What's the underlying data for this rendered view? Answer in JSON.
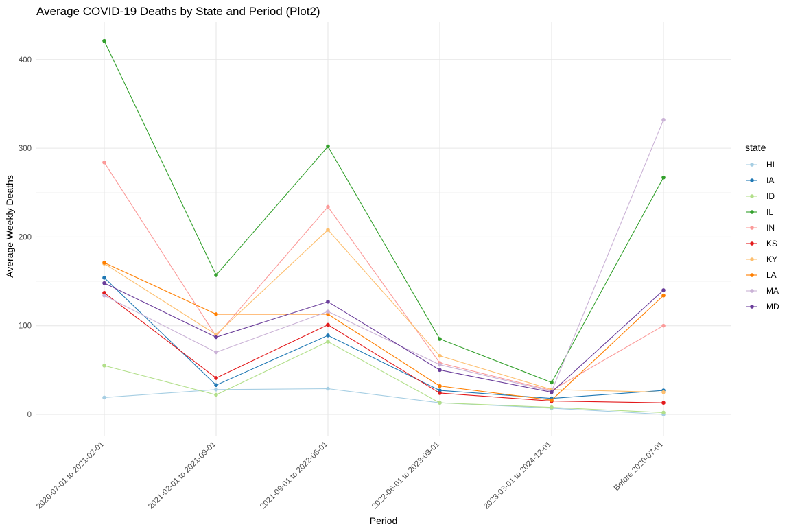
{
  "chart_data": {
    "type": "line",
    "title": "Average COVID-19 Deaths by State and Period (Plot2)",
    "xlabel": "Period",
    "ylabel": "Average Weekly Deaths",
    "categories": [
      "2020-07-01 to 2021-02-01",
      "2021-02-01 to 2021-09-01",
      "2021-09-01 to 2022-06-01",
      "2022-06-01 to 2023-03-01",
      "2023-03-01 to 2024-12-01",
      "Before 2020-07-01"
    ],
    "ylim": [
      -30,
      445
    ],
    "yticks": [
      0,
      100,
      200,
      300,
      400
    ],
    "grid": true,
    "legend_title": "state",
    "legend_position": "right",
    "series": [
      {
        "name": "HI",
        "color": "#a6cee3",
        "values": [
          19,
          28,
          29,
          13,
          7,
          0
        ]
      },
      {
        "name": "IA",
        "color": "#1f78b4",
        "values": [
          154,
          33,
          89,
          27,
          18,
          27
        ]
      },
      {
        "name": "ID",
        "color": "#b2df8a",
        "values": [
          55,
          22,
          82,
          13,
          8,
          2
        ]
      },
      {
        "name": "IL",
        "color": "#33a02c",
        "values": [
          421,
          157,
          302,
          85,
          36,
          267
        ]
      },
      {
        "name": "IN",
        "color": "#fb9a99",
        "values": [
          284,
          88,
          234,
          58,
          27,
          100
        ]
      },
      {
        "name": "KS",
        "color": "#e31a1c",
        "values": [
          137,
          41,
          101,
          24,
          15,
          13
        ]
      },
      {
        "name": "KY",
        "color": "#fdbf6f",
        "values": [
          170,
          90,
          208,
          66,
          28,
          25
        ]
      },
      {
        "name": "LA",
        "color": "#ff7f00",
        "values": [
          171,
          113,
          113,
          32,
          16,
          134
        ]
      },
      {
        "name": "MA",
        "color": "#cab2d6",
        "values": [
          134,
          70,
          116,
          56,
          26,
          332
        ]
      },
      {
        "name": "MD",
        "color": "#6a3d9a",
        "values": [
          148,
          87,
          127,
          50,
          25,
          140
        ]
      }
    ]
  }
}
